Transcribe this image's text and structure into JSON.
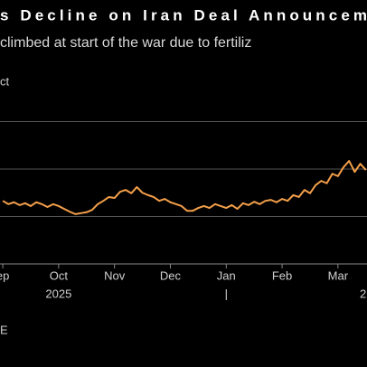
{
  "chart_data": {
    "type": "line",
    "title": "s Decline on Iran Deal Announcem",
    "subtitle": "climbed at start of the war due to fertiliz",
    "y_label": "ct",
    "source": "E",
    "year_labels": [
      {
        "text": "2025",
        "x": 1
      },
      {
        "text": "|",
        "x": 4
      },
      {
        "text": "2",
        "x": 6.45
      }
    ],
    "xlim": [
      -0.05,
      6.52
    ],
    "xticks": [
      {
        "value": 0,
        "label": "ep"
      },
      {
        "value": 1,
        "label": "Oct"
      },
      {
        "value": 2,
        "label": "Nov"
      },
      {
        "value": 3,
        "label": "Dec"
      },
      {
        "value": 4,
        "label": "Jan"
      },
      {
        "value": 5,
        "label": "Feb"
      },
      {
        "value": 6,
        "label": "Mar"
      }
    ],
    "ylim": [
      0,
      3
    ],
    "gridlines": [
      1,
      2,
      3
    ],
    "grid": true,
    "series": [
      {
        "color": "#f5a04a",
        "x": [
          0,
          0.1,
          0.2,
          0.3,
          0.4,
          0.5,
          0.6,
          0.7,
          0.8,
          0.9,
          1.0,
          1.1,
          1.2,
          1.3,
          1.4,
          1.5,
          1.6,
          1.7,
          1.8,
          1.9,
          2.0,
          2.1,
          2.2,
          2.3,
          2.4,
          2.5,
          2.6,
          2.7,
          2.8,
          2.9,
          3.0,
          3.1,
          3.2,
          3.3,
          3.4,
          3.5,
          3.6,
          3.7,
          3.8,
          3.9,
          4.0,
          4.1,
          4.2,
          4.3,
          4.4,
          4.5,
          4.6,
          4.7,
          4.8,
          4.9,
          5.0,
          5.1,
          5.2,
          5.3,
          5.4,
          5.5,
          5.6,
          5.7,
          5.8,
          5.9,
          6.0,
          6.1,
          6.2,
          6.3,
          6.4,
          6.5
        ],
        "values": [
          1.33,
          1.26,
          1.3,
          1.24,
          1.28,
          1.22,
          1.3,
          1.26,
          1.2,
          1.26,
          1.22,
          1.16,
          1.1,
          1.05,
          1.07,
          1.09,
          1.14,
          1.26,
          1.33,
          1.41,
          1.39,
          1.52,
          1.56,
          1.49,
          1.62,
          1.5,
          1.45,
          1.41,
          1.33,
          1.37,
          1.3,
          1.26,
          1.22,
          1.12,
          1.12,
          1.18,
          1.22,
          1.18,
          1.26,
          1.22,
          1.18,
          1.24,
          1.16,
          1.28,
          1.24,
          1.31,
          1.26,
          1.33,
          1.35,
          1.3,
          1.37,
          1.33,
          1.45,
          1.41,
          1.56,
          1.49,
          1.66,
          1.75,
          1.7,
          1.9,
          1.85,
          2.04,
          2.17,
          1.94,
          2.11,
          1.98
        ]
      }
    ]
  }
}
